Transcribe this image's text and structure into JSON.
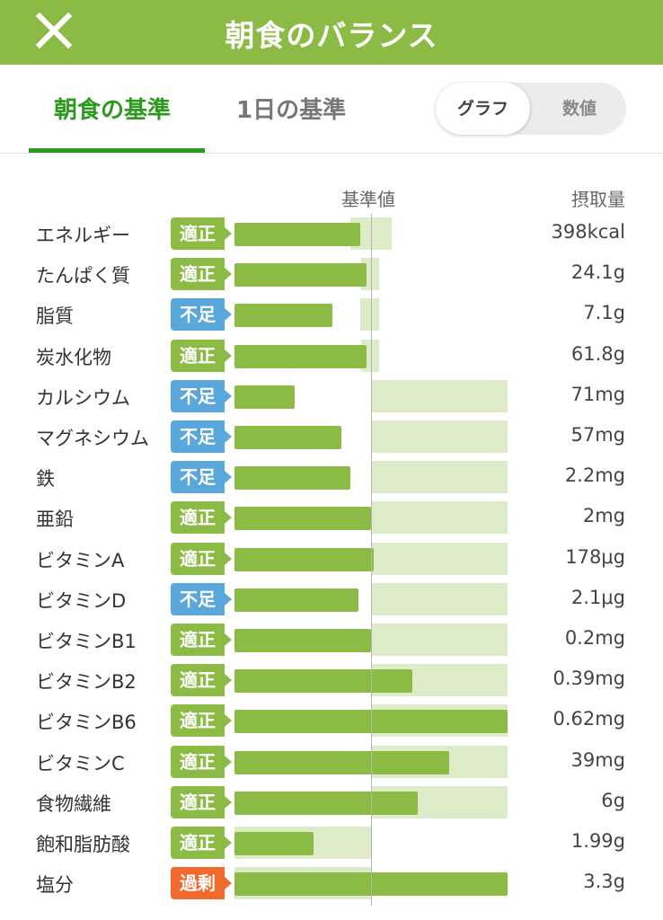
{
  "header": {
    "title": "朝食のバランス",
    "close_icon": "close-icon"
  },
  "tabs": [
    {
      "label": "朝食の基準",
      "active": true
    },
    {
      "label": "1日の基準",
      "active": false
    }
  ],
  "view_toggle": {
    "options": [
      {
        "label": "グラフ",
        "selected": true
      },
      {
        "label": "数値",
        "selected": false
      }
    ]
  },
  "columns": {
    "reference": "基準値",
    "intake": "摂取量"
  },
  "status_colors": {
    "適正": "#8cbb45",
    "不足": "#5aa7dc",
    "過剰": "#ef6a2c"
  },
  "nutrients": [
    {
      "name": "エネルギー",
      "status": "適正",
      "amount": "398kcal",
      "ratio": 0.92,
      "ref": [
        0.85,
        1.15
      ]
    },
    {
      "name": "たんぱく質",
      "status": "適正",
      "amount": "24.1g",
      "ratio": 0.97,
      "ref": [
        0.93,
        1.06
      ]
    },
    {
      "name": "脂質",
      "status": "不足",
      "amount": "7.1g",
      "ratio": 0.72,
      "ref": [
        0.92,
        1.06
      ]
    },
    {
      "name": "炭水化物",
      "status": "適正",
      "amount": "61.8g",
      "ratio": 0.97,
      "ref": [
        0.93,
        1.06
      ]
    },
    {
      "name": "カルシウム",
      "status": "不足",
      "amount": "71mg",
      "ratio": 0.44,
      "ref": [
        1.0,
        2.0
      ]
    },
    {
      "name": "マグネシウム",
      "status": "不足",
      "amount": "57mg",
      "ratio": 0.78,
      "ref": [
        1.0,
        2.0
      ]
    },
    {
      "name": "鉄",
      "status": "不足",
      "amount": "2.2mg",
      "ratio": 0.85,
      "ref": [
        1.0,
        2.0
      ]
    },
    {
      "name": "亜鉛",
      "status": "適正",
      "amount": "2mg",
      "ratio": 1.0,
      "ref": [
        1.0,
        2.0
      ]
    },
    {
      "name": "ビタミンA",
      "status": "適正",
      "amount": "178μg",
      "ratio": 1.02,
      "ref": [
        1.0,
        2.0
      ]
    },
    {
      "name": "ビタミンD",
      "status": "不足",
      "amount": "2.1μg",
      "ratio": 0.91,
      "ref": [
        1.0,
        2.0
      ]
    },
    {
      "name": "ビタミンB1",
      "status": "適正",
      "amount": "0.2mg",
      "ratio": 1.0,
      "ref": [
        1.0,
        2.0
      ]
    },
    {
      "name": "ビタミンB2",
      "status": "適正",
      "amount": "0.39mg",
      "ratio": 1.3,
      "ref": [
        1.0,
        2.0
      ]
    },
    {
      "name": "ビタミンB6",
      "status": "適正",
      "amount": "0.62mg",
      "ratio": 2.0,
      "ref": [
        1.0,
        2.0
      ]
    },
    {
      "name": "ビタミンC",
      "status": "適正",
      "amount": "39mg",
      "ratio": 1.57,
      "ref": [
        1.0,
        2.0
      ]
    },
    {
      "name": "食物繊維",
      "status": "適正",
      "amount": "6g",
      "ratio": 1.34,
      "ref": [
        1.0,
        2.0
      ]
    },
    {
      "name": "飽和脂肪酸",
      "status": "適正",
      "amount": "1.99g",
      "ratio": 0.58,
      "ref": [
        0.0,
        1.0
      ]
    },
    {
      "name": "塩分",
      "status": "過剰",
      "amount": "3.3g",
      "ratio": 2.0,
      "ref": [
        0.0,
        1.0
      ]
    }
  ]
}
